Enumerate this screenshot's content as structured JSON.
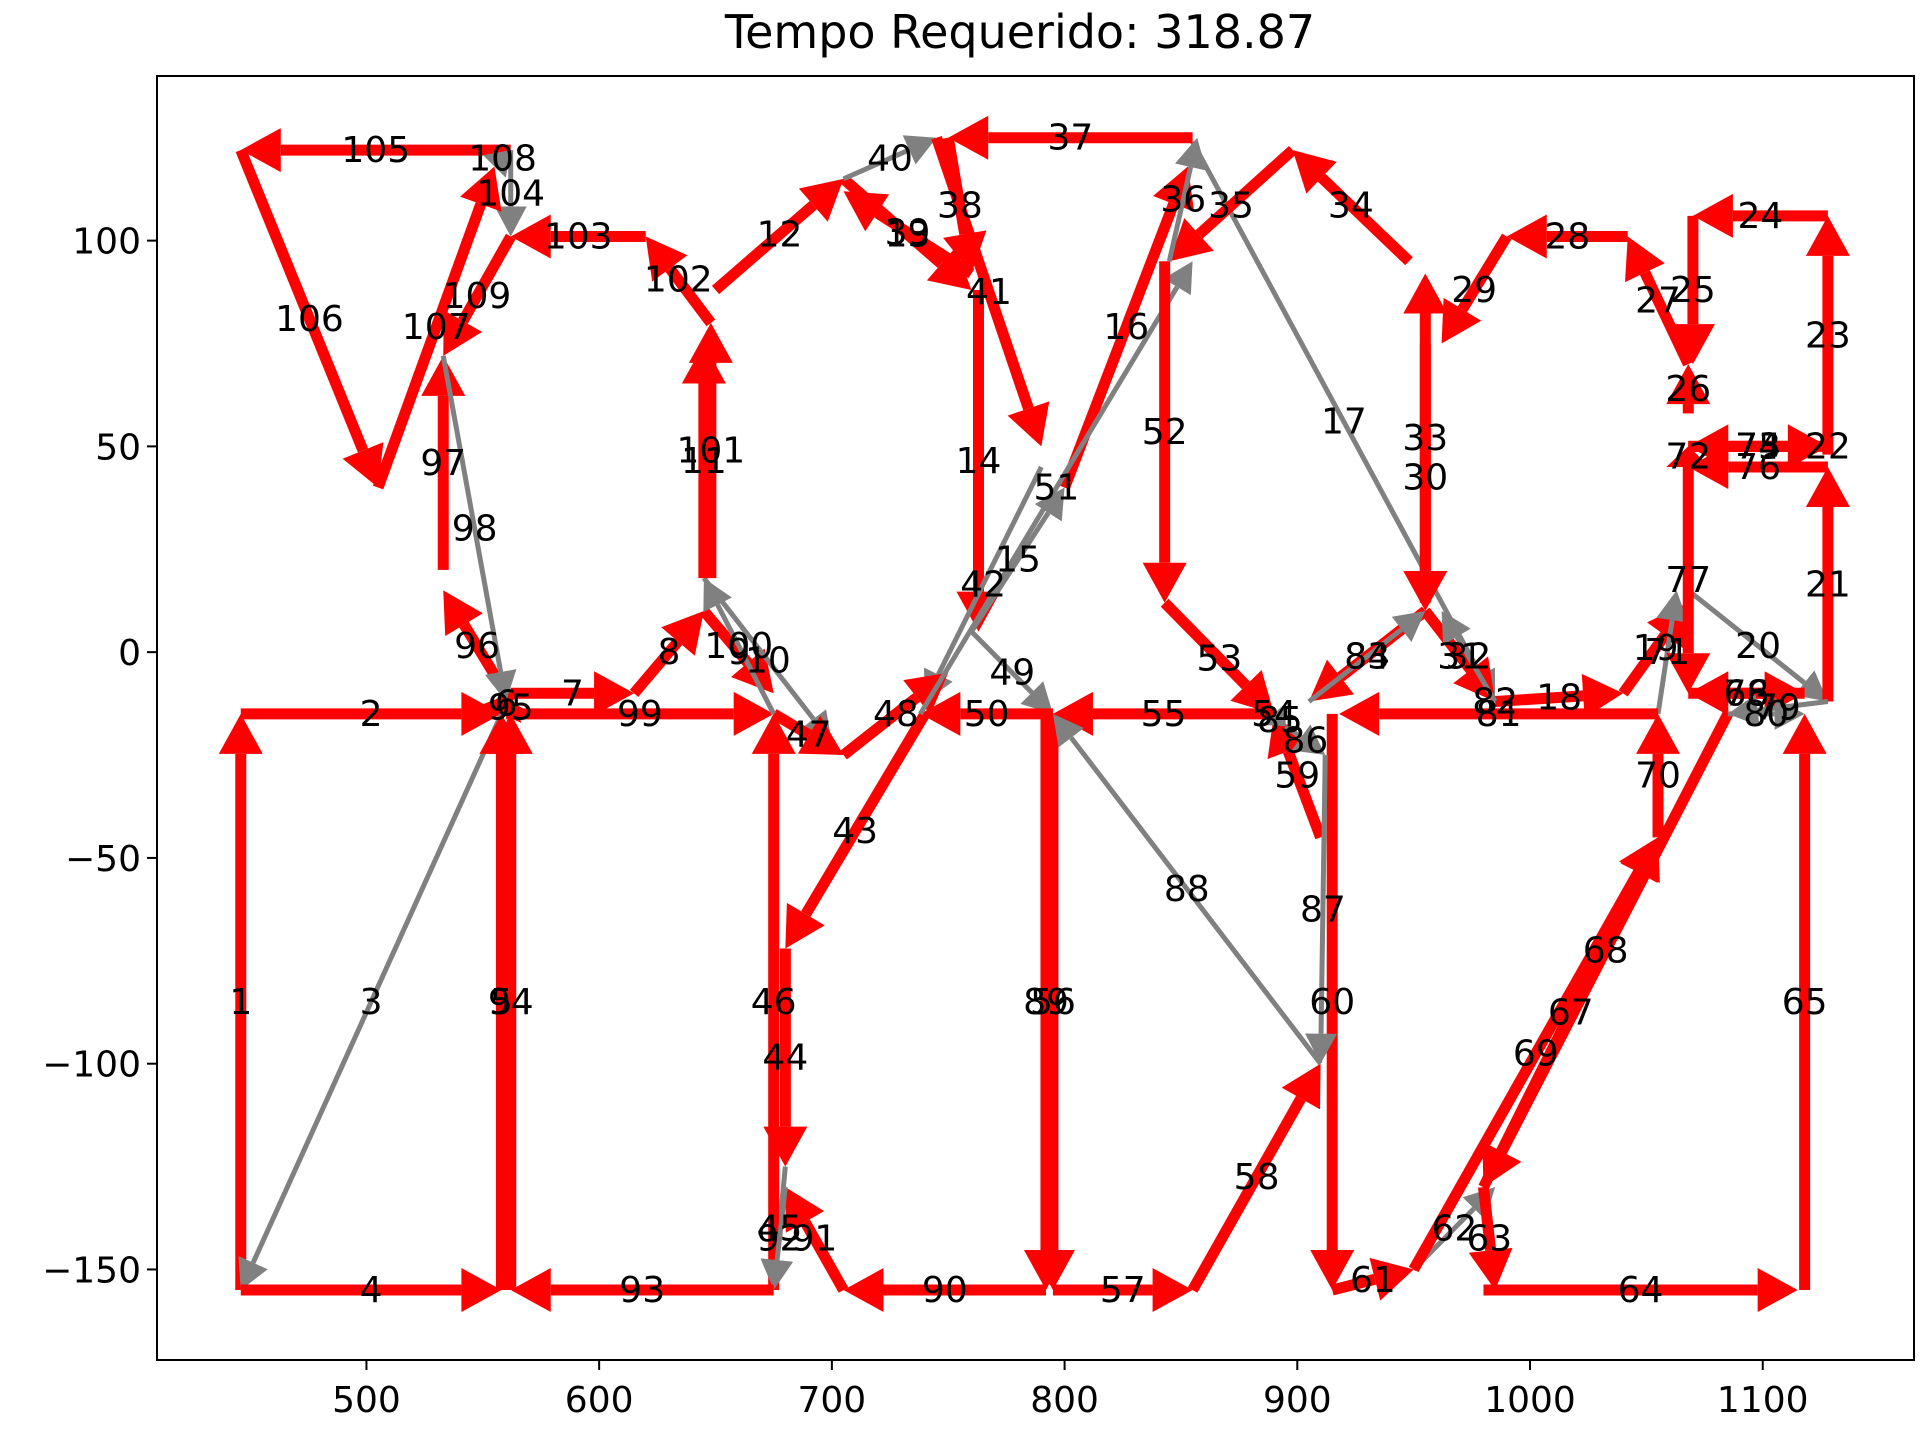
{
  "chart_data": {
    "type": "line",
    "title": "Tempo Requerido: 318.87",
    "xlabel": "",
    "ylabel": "",
    "xlim": [
      410,
      1165
    ],
    "ylim": [
      -172,
      140
    ],
    "x_ticks": [
      "500",
      "600",
      "700",
      "800",
      "900",
      "1000",
      "1100"
    ],
    "y_ticks": [
      "100",
      "50",
      "0",
      "−50",
      "−100",
      "−150"
    ],
    "x_tick_values": [
      500,
      600,
      700,
      800,
      900,
      1000,
      1100
    ],
    "y_tick_values": [
      100,
      50,
      0,
      -50,
      -100,
      -150
    ],
    "grid": false,
    "colors": {
      "cut": "#ff0000",
      "travel": "#808080"
    },
    "series": [
      {
        "values": [
          {
            "label": "1",
            "kind": "cut",
            "x1": 446,
            "y1": -155,
            "x2": 446,
            "y2": -15
          },
          {
            "label": "2",
            "kind": "cut",
            "x1": 446,
            "y1": -15,
            "x2": 558,
            "y2": -15
          },
          {
            "label": "3",
            "kind": "travel",
            "x1": 558,
            "y1": -15,
            "x2": 446,
            "y2": -155
          },
          {
            "label": "4",
            "kind": "cut",
            "x1": 446,
            "y1": -155,
            "x2": 558,
            "y2": -155
          },
          {
            "label": "5",
            "kind": "cut",
            "x1": 558,
            "y1": -155,
            "x2": 558,
            "y2": -15
          },
          {
            "label": "6",
            "kind": "cut",
            "x1": 558,
            "y1": -15,
            "x2": 562,
            "y2": -10
          },
          {
            "label": "7",
            "kind": "cut",
            "x1": 562,
            "y1": -10,
            "x2": 615,
            "y2": -10
          },
          {
            "label": "8",
            "kind": "cut",
            "x1": 615,
            "y1": -10,
            "x2": 645,
            "y2": 10
          },
          {
            "label": "9",
            "kind": "cut",
            "x1": 645,
            "y1": 10,
            "x2": 675,
            "y2": -10
          },
          {
            "label": "10",
            "kind": "travel",
            "x1": 645,
            "y1": 18,
            "x2": 700,
            "y2": -22
          },
          {
            "label": "11",
            "kind": "cut",
            "x1": 645,
            "y1": 18,
            "x2": 645,
            "y2": 75
          },
          {
            "label": "12",
            "kind": "cut",
            "x1": 650,
            "y1": 88,
            "x2": 705,
            "y2": 115
          },
          {
            "label": "13",
            "kind": "cut",
            "x1": 705,
            "y1": 115,
            "x2": 760,
            "y2": 88
          },
          {
            "label": "14",
            "kind": "cut",
            "x1": 763,
            "y1": 88,
            "x2": 763,
            "y2": 5
          },
          {
            "label": "15",
            "kind": "travel",
            "x1": 760,
            "y1": 5,
            "x2": 800,
            "y2": 40
          },
          {
            "label": "16",
            "kind": "cut",
            "x1": 800,
            "y1": 40,
            "x2": 853,
            "y2": 118
          },
          {
            "label": "17",
            "kind": "travel",
            "x1": 855,
            "y1": 124,
            "x2": 985,
            "y2": -12
          },
          {
            "label": "18",
            "kind": "cut",
            "x1": 985,
            "y1": -12,
            "x2": 1040,
            "y2": -10
          },
          {
            "label": "19",
            "kind": "cut",
            "x1": 1040,
            "y1": -10,
            "x2": 1068,
            "y2": 12
          },
          {
            "label": "20",
            "kind": "travel",
            "x1": 1068,
            "y1": 15,
            "x2": 1128,
            "y2": -12
          },
          {
            "label": "21",
            "kind": "cut",
            "x1": 1128,
            "y1": -12,
            "x2": 1128,
            "y2": 45
          },
          {
            "label": "22",
            "kind": "cut",
            "x1": 1128,
            "y1": 50,
            "x2": 1128,
            "y2": 50
          },
          {
            "label": "23",
            "kind": "cut",
            "x1": 1128,
            "y1": 48,
            "x2": 1128,
            "y2": 106
          },
          {
            "label": "24",
            "kind": "cut",
            "x1": 1128,
            "y1": 106,
            "x2": 1070,
            "y2": 106
          },
          {
            "label": "25",
            "kind": "cut",
            "x1": 1070,
            "y1": 106,
            "x2": 1070,
            "y2": 70
          },
          {
            "label": "26",
            "kind": "cut",
            "x1": 1068,
            "y1": 58,
            "x2": 1068,
            "y2": 70
          },
          {
            "label": "27",
            "kind": "cut",
            "x1": 1068,
            "y1": 70,
            "x2": 1042,
            "y2": 101
          },
          {
            "label": "28",
            "kind": "cut",
            "x1": 1042,
            "y1": 101,
            "x2": 990,
            "y2": 101
          },
          {
            "label": "29",
            "kind": "cut",
            "x1": 990,
            "y1": 101,
            "x2": 962,
            "y2": 75
          },
          {
            "label": "30",
            "kind": "cut",
            "x1": 955,
            "y1": 75,
            "x2": 955,
            "y2": 10
          },
          {
            "label": "31",
            "kind": "cut",
            "x1": 955,
            "y1": 10,
            "x2": 985,
            "y2": -12
          },
          {
            "label": "32",
            "kind": "travel",
            "x1": 985,
            "y1": -12,
            "x2": 962,
            "y2": 10
          },
          {
            "label": "33",
            "kind": "cut",
            "x1": 955,
            "y1": 12,
            "x2": 955,
            "y2": 92
          },
          {
            "label": "34",
            "kind": "cut",
            "x1": 948,
            "y1": 95,
            "x2": 898,
            "y2": 122
          },
          {
            "label": "35",
            "kind": "cut",
            "x1": 898,
            "y1": 122,
            "x2": 845,
            "y2": 95
          },
          {
            "label": "36",
            "kind": "travel",
            "x1": 845,
            "y1": 95,
            "x2": 857,
            "y2": 125
          },
          {
            "label": "37",
            "kind": "cut",
            "x1": 855,
            "y1": 125,
            "x2": 750,
            "y2": 125
          },
          {
            "label": "38",
            "kind": "cut",
            "x1": 750,
            "y1": 125,
            "x2": 760,
            "y2": 92
          },
          {
            "label": "39",
            "kind": "cut",
            "x1": 760,
            "y1": 92,
            "x2": 705,
            "y2": 112
          },
          {
            "label": "40",
            "kind": "travel",
            "x1": 705,
            "y1": 115,
            "x2": 745,
            "y2": 125
          },
          {
            "label": "41",
            "kind": "cut",
            "x1": 745,
            "y1": 125,
            "x2": 790,
            "y2": 50
          },
          {
            "label": "42",
            "kind": "travel",
            "x1": 790,
            "y1": 45,
            "x2": 740,
            "y2": -12
          },
          {
            "label": "43",
            "kind": "cut",
            "x1": 740,
            "y1": -15,
            "x2": 680,
            "y2": -72
          },
          {
            "label": "44",
            "kind": "cut",
            "x1": 680,
            "y1": -72,
            "x2": 680,
            "y2": -125
          },
          {
            "label": "45",
            "kind": "travel",
            "x1": 680,
            "y1": -125,
            "x2": 675,
            "y2": -155
          },
          {
            "label": "46",
            "kind": "cut",
            "x1": 675,
            "y1": -155,
            "x2": 675,
            "y2": -15
          },
          {
            "label": "47",
            "kind": "cut",
            "x1": 675,
            "y1": -15,
            "x2": 705,
            "y2": -25
          },
          {
            "label": "48",
            "kind": "cut",
            "x1": 705,
            "y1": -25,
            "x2": 750,
            "y2": -5
          },
          {
            "label": "49",
            "kind": "travel",
            "x1": 760,
            "y1": 5,
            "x2": 795,
            "y2": -15
          },
          {
            "label": "50",
            "kind": "cut",
            "x1": 795,
            "y1": -15,
            "x2": 738,
            "y2": -15
          },
          {
            "label": "51",
            "kind": "travel",
            "x1": 738,
            "y1": -15,
            "x2": 855,
            "y2": 95
          },
          {
            "label": "52",
            "kind": "cut",
            "x1": 843,
            "y1": 95,
            "x2": 843,
            "y2": 12
          },
          {
            "label": "53",
            "kind": "cut",
            "x1": 843,
            "y1": 12,
            "x2": 890,
            "y2": -15
          },
          {
            "label": "54",
            "kind": "cut",
            "x1": 890,
            "y1": -15,
            "x2": 890,
            "y2": -15
          },
          {
            "label": "55",
            "kind": "cut",
            "x1": 890,
            "y1": -15,
            "x2": 795,
            "y2": -15
          },
          {
            "label": "56",
            "kind": "cut",
            "x1": 795,
            "y1": -15,
            "x2": 795,
            "y2": -155
          },
          {
            "label": "57",
            "kind": "cut",
            "x1": 795,
            "y1": -155,
            "x2": 855,
            "y2": -155
          },
          {
            "label": "58",
            "kind": "cut",
            "x1": 855,
            "y1": -155,
            "x2": 910,
            "y2": -100
          },
          {
            "label": "59",
            "kind": "cut",
            "x1": 910,
            "y1": -45,
            "x2": 890,
            "y2": -15
          },
          {
            "label": "60",
            "kind": "cut",
            "x1": 915,
            "y1": -15,
            "x2": 915,
            "y2": -155
          },
          {
            "label": "61",
            "kind": "cut",
            "x1": 915,
            "y1": -155,
            "x2": 950,
            "y2": -150
          },
          {
            "label": "62",
            "kind": "travel",
            "x1": 950,
            "y1": -150,
            "x2": 985,
            "y2": -130
          },
          {
            "label": "63",
            "kind": "cut",
            "x1": 980,
            "y1": -130,
            "x2": 985,
            "y2": -155
          },
          {
            "label": "64",
            "kind": "cut",
            "x1": 980,
            "y1": -155,
            "x2": 1115,
            "y2": -155
          },
          {
            "label": "65",
            "kind": "cut",
            "x1": 1118,
            "y1": -155,
            "x2": 1118,
            "y2": -15
          },
          {
            "label": "66",
            "kind": "cut",
            "x1": 1118,
            "y1": -10,
            "x2": 1068,
            "y2": -10
          },
          {
            "label": "67",
            "kind": "cut",
            "x1": 980,
            "y1": -130,
            "x2": 1055,
            "y2": -45
          },
          {
            "label": "68",
            "kind": "cut",
            "x1": 1085,
            "y1": -15,
            "x2": 980,
            "y2": -130
          },
          {
            "label": "69",
            "kind": "cut",
            "x1": 950,
            "y1": -150,
            "x2": 1055,
            "y2": -45
          },
          {
            "label": "70",
            "kind": "cut",
            "x1": 1055,
            "y1": -45,
            "x2": 1055,
            "y2": -15
          },
          {
            "label": "71",
            "kind": "travel",
            "x1": 1055,
            "y1": -15,
            "x2": 1063,
            "y2": 15
          },
          {
            "label": "72",
            "kind": "cut",
            "x1": 1068,
            "y1": 45,
            "x2": 1068,
            "y2": 50
          },
          {
            "label": "73",
            "kind": "cut",
            "x1": 1068,
            "y1": 50,
            "x2": 1128,
            "y2": 50
          },
          {
            "label": "74",
            "kind": "cut",
            "x1": 1068,
            "y1": 50,
            "x2": 1128,
            "y2": 50
          },
          {
            "label": "75",
            "kind": "cut",
            "x1": 1128,
            "y1": 50,
            "x2": 1068,
            "y2": 50
          },
          {
            "label": "76",
            "kind": "cut",
            "x1": 1128,
            "y1": 45,
            "x2": 1068,
            "y2": 45
          },
          {
            "label": "77",
            "kind": "cut",
            "x1": 1068,
            "y1": 45,
            "x2": 1068,
            "y2": -10
          },
          {
            "label": "78",
            "kind": "cut",
            "x1": 1068,
            "y1": -10,
            "x2": 1118,
            "y2": -10
          },
          {
            "label": "79",
            "kind": "travel",
            "x1": 1128,
            "y1": -12,
            "x2": 1085,
            "y2": -15
          },
          {
            "label": "80",
            "kind": "travel",
            "x1": 1085,
            "y1": -15,
            "x2": 1118,
            "y2": -15
          },
          {
            "label": "81",
            "kind": "cut",
            "x1": 1055,
            "y1": -15,
            "x2": 918,
            "y2": -15
          },
          {
            "label": "82",
            "kind": "cut",
            "x1": 985,
            "y1": -12,
            "x2": 985,
            "y2": -12
          },
          {
            "label": "83",
            "kind": "cut",
            "x1": 955,
            "y1": 10,
            "x2": 905,
            "y2": -12
          },
          {
            "label": "84",
            "kind": "travel",
            "x1": 905,
            "y1": -12,
            "x2": 955,
            "y2": 10
          },
          {
            "label": "85",
            "kind": "travel",
            "x1": 890,
            "y1": -15,
            "x2": 895,
            "y2": -18
          },
          {
            "label": "86",
            "kind": "travel",
            "x1": 895,
            "y1": -18,
            "x2": 912,
            "y2": -25
          },
          {
            "label": "87",
            "kind": "travel",
            "x1": 912,
            "y1": -25,
            "x2": 910,
            "y2": -100
          },
          {
            "label": "88",
            "kind": "travel",
            "x1": 910,
            "y1": -100,
            "x2": 795,
            "y2": -15
          },
          {
            "label": "89",
            "kind": "cut",
            "x1": 792,
            "y1": -15,
            "x2": 792,
            "y2": -155
          },
          {
            "label": "90",
            "kind": "cut",
            "x1": 792,
            "y1": -155,
            "x2": 705,
            "y2": -155
          },
          {
            "label": "91",
            "kind": "cut",
            "x1": 705,
            "y1": -155,
            "x2": 680,
            "y2": -130
          },
          {
            "label": "92",
            "kind": "travel",
            "x1": 680,
            "y1": -130,
            "x2": 675,
            "y2": -155
          },
          {
            "label": "93",
            "kind": "cut",
            "x1": 675,
            "y1": -155,
            "x2": 562,
            "y2": -155
          },
          {
            "label": "94",
            "kind": "cut",
            "x1": 562,
            "y1": -155,
            "x2": 562,
            "y2": -15
          },
          {
            "label": "95",
            "kind": "cut",
            "x1": 562,
            "y1": -15,
            "x2": 562,
            "y2": -12
          },
          {
            "label": "96",
            "kind": "cut",
            "x1": 562,
            "y1": -12,
            "x2": 533,
            "y2": 15
          },
          {
            "label": "97",
            "kind": "cut",
            "x1": 533,
            "y1": 20,
            "x2": 533,
            "y2": 72
          },
          {
            "label": "98",
            "kind": "travel",
            "x1": 533,
            "y1": 72,
            "x2": 560,
            "y2": -12
          },
          {
            "label": "99",
            "kind": "cut",
            "x1": 560,
            "y1": -15,
            "x2": 675,
            "y2": -15
          },
          {
            "label": "100",
            "kind": "travel",
            "x1": 675,
            "y1": -15,
            "x2": 645,
            "y2": 18
          },
          {
            "label": "101",
            "kind": "cut",
            "x1": 648,
            "y1": 18,
            "x2": 648,
            "y2": 80
          },
          {
            "label": "102",
            "kind": "cut",
            "x1": 648,
            "y1": 80,
            "x2": 620,
            "y2": 101
          },
          {
            "label": "103",
            "kind": "cut",
            "x1": 620,
            "y1": 101,
            "x2": 562,
            "y2": 101
          },
          {
            "label": "104",
            "kind": "travel",
            "x1": 562,
            "y1": 122,
            "x2": 562,
            "y2": 101
          },
          {
            "label": "105",
            "kind": "cut",
            "x1": 562,
            "y1": 122,
            "x2": 446,
            "y2": 122
          },
          {
            "label": "106",
            "kind": "cut",
            "x1": 446,
            "y1": 122,
            "x2": 505,
            "y2": 40
          },
          {
            "label": "107",
            "kind": "cut",
            "x1": 505,
            "y1": 40,
            "x2": 555,
            "y2": 118
          },
          {
            "label": "108",
            "kind": "travel",
            "x1": 555,
            "y1": 118,
            "x2": 562,
            "y2": 122
          },
          {
            "label": "109",
            "kind": "cut",
            "x1": 562,
            "y1": 101,
            "x2": 533,
            "y2": 72
          }
        ]
      }
    ]
  }
}
